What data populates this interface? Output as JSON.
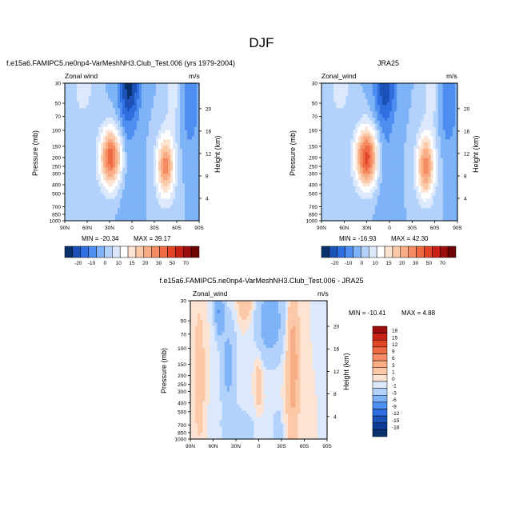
{
  "figure": {
    "title": "DJF"
  },
  "chart_data": [
    {
      "type": "heatmap",
      "title": "f.e15a6.FAMIPC5.ne0np4-VarMeshNH3.Club_Test.006 (yrs 1979-2004)",
      "field_label": "Zonal wind",
      "units": "m/s",
      "xlabel": "",
      "ylabel": "Pressure (mb)",
      "y2label": "Height (km)",
      "x_ticks": [
        "90N",
        "60N",
        "30N",
        "0",
        "30S",
        "60S",
        "90S"
      ],
      "y_ticks": [
        30,
        50,
        70,
        100,
        150,
        200,
        250,
        300,
        400,
        500,
        700,
        850,
        1000
      ],
      "y_scale": "log",
      "ylim": [
        1000,
        30
      ],
      "y2_ticks": [
        4,
        8,
        12,
        16,
        20
      ],
      "min_label": "MIN = -20.34",
      "max_label": "MAX = 39.17",
      "min": -20.34,
      "max": 39.17,
      "jets": [
        {
          "lat": 28,
          "p": 200,
          "value": 39.17
        },
        {
          "lat": -45,
          "p": 250,
          "value": 32
        },
        {
          "lat": 3,
          "p": 30,
          "value": -20.34
        }
      ],
      "colorbar": {
        "labels": [
          "-20",
          "-10",
          "0",
          "10",
          "15",
          "20",
          "30",
          "50",
          "70"
        ],
        "colors": [
          "#08306b",
          "#1c52b8",
          "#2f6fe0",
          "#4d8ef0",
          "#7fb3f7",
          "#b2d2fb",
          "#dce9fc",
          "#ffffff",
          "#fde3d1",
          "#fbc8a8",
          "#f8ad85",
          "#f58b62",
          "#ee6a43",
          "#e04526",
          "#c82214",
          "#9c0d0d",
          "#6e0505"
        ]
      }
    },
    {
      "type": "heatmap",
      "title": "JRA25",
      "field_label": "Zonal_wind",
      "units": "m/s",
      "xlabel": "",
      "ylabel": "Pressure (mb)",
      "y2label": "Height (km)",
      "x_ticks": [
        "90N",
        "60N",
        "30N",
        "0",
        "30S",
        "60S",
        "90S"
      ],
      "y_ticks": [
        30,
        50,
        70,
        100,
        150,
        200,
        250,
        300,
        400,
        500,
        700,
        850,
        1000
      ],
      "y_scale": "log",
      "ylim": [
        1000,
        30
      ],
      "y2_ticks": [
        4,
        8,
        12,
        16,
        20
      ],
      "min_label": "MIN = -16.93",
      "max_label": "MAX = 42.30",
      "min": -16.93,
      "max": 42.3,
      "jets": [
        {
          "lat": 30,
          "p": 200,
          "value": 42.3
        },
        {
          "lat": -48,
          "p": 250,
          "value": 33
        },
        {
          "lat": 5,
          "p": 30,
          "value": -16.93
        }
      ],
      "colorbar": {
        "labels": [
          "-20",
          "-10",
          "0",
          "10",
          "15",
          "20",
          "30",
          "50",
          "70"
        ],
        "colors": [
          "#08306b",
          "#1c52b8",
          "#2f6fe0",
          "#4d8ef0",
          "#7fb3f7",
          "#b2d2fb",
          "#dce9fc",
          "#ffffff",
          "#fde3d1",
          "#fbc8a8",
          "#f8ad85",
          "#f58b62",
          "#ee6a43",
          "#e04526",
          "#c82214",
          "#9c0d0d",
          "#6e0505"
        ]
      }
    },
    {
      "type": "heatmap",
      "title": "f.e15a6.FAMIPC5.ne0np4-VarMeshNH3.Club_Test.006 - JRA25",
      "field_label": "Zonal_wind",
      "units": "m/s",
      "xlabel": "",
      "ylabel": "Pressure (mb)",
      "y2label": "Height (km)",
      "x_ticks": [
        "90N",
        "60N",
        "30N",
        "0",
        "30S",
        "60S",
        "90S"
      ],
      "y_ticks": [
        30,
        50,
        70,
        100,
        150,
        200,
        250,
        300,
        400,
        500,
        700,
        850,
        1000
      ],
      "y_scale": "log",
      "ylim": [
        1000,
        30
      ],
      "y2_ticks": [
        4,
        8,
        12,
        16,
        20
      ],
      "min_label": "MIN = -10.41",
      "max_label": "MAX =   4.88",
      "min": -10.41,
      "max": 4.88,
      "colorbar": {
        "labels": [
          "18",
          "15",
          "12",
          "9",
          "6",
          "3",
          "1",
          "0",
          "-1",
          "-3",
          "-6",
          "-9",
          "-12",
          "-15",
          "-18"
        ],
        "colors": [
          "#9c0d0d",
          "#c82214",
          "#e04526",
          "#ee6a43",
          "#f58b62",
          "#f8ad85",
          "#fbc8a8",
          "#fde3d1",
          "#dce9fc",
          "#b2d2fb",
          "#7fb3f7",
          "#4d8ef0",
          "#2f6fe0",
          "#1c52b8",
          "#0d3a94",
          "#08306b"
        ]
      }
    }
  ]
}
